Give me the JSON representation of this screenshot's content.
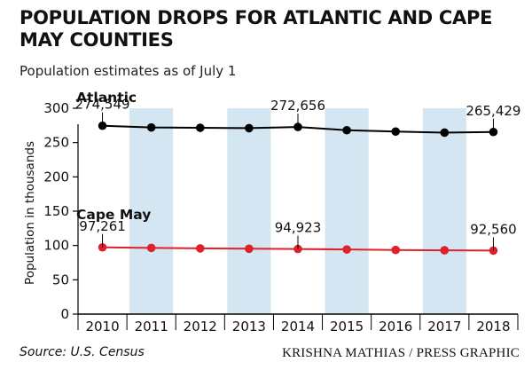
{
  "title": "POPULATION DROPS FOR ATLANTIC AND CAPE MAY COUNTIES",
  "subtitle": "Population estimates as of July 1",
  "source": "Source: U.S. Census",
  "credit": "KRISHNA MATHIAS / PRESS GRAPHIC",
  "chart_data": {
    "type": "line",
    "title": "POPULATION DROPS FOR ATLANTIC AND CAPE MAY COUNTIES",
    "subtitle": "Population estimates as of July 1",
    "xlabel": "",
    "ylabel": "Population in thousands",
    "ylim": [
      0,
      300
    ],
    "yticks": [
      0,
      50,
      100,
      150,
      200,
      250,
      300
    ],
    "categories": [
      "2010",
      "2011",
      "2012",
      "2013",
      "2014",
      "2015",
      "2016",
      "2017",
      "2018"
    ],
    "series": [
      {
        "name": "Atlantic",
        "color": "#000000",
        "values": [
          274.5,
          272,
          271.5,
          271,
          272.7,
          268,
          266,
          264.5,
          265.4
        ],
        "labels": [
          {
            "index": 0,
            "text": "274,549"
          },
          {
            "index": 4,
            "text": "272,656"
          },
          {
            "index": 8,
            "text": "265,429"
          }
        ]
      },
      {
        "name": "Cape May",
        "color": "#e0202a",
        "values": [
          97.3,
          96.5,
          95.8,
          95.3,
          94.9,
          94.2,
          93.5,
          93,
          92.6
        ],
        "labels": [
          {
            "index": 0,
            "text": "97,261"
          },
          {
            "index": 4,
            "text": "94,923"
          },
          {
            "index": 8,
            "text": "92,560"
          }
        ]
      }
    ],
    "band_color": "#d3e6f1",
    "grid": false
  }
}
